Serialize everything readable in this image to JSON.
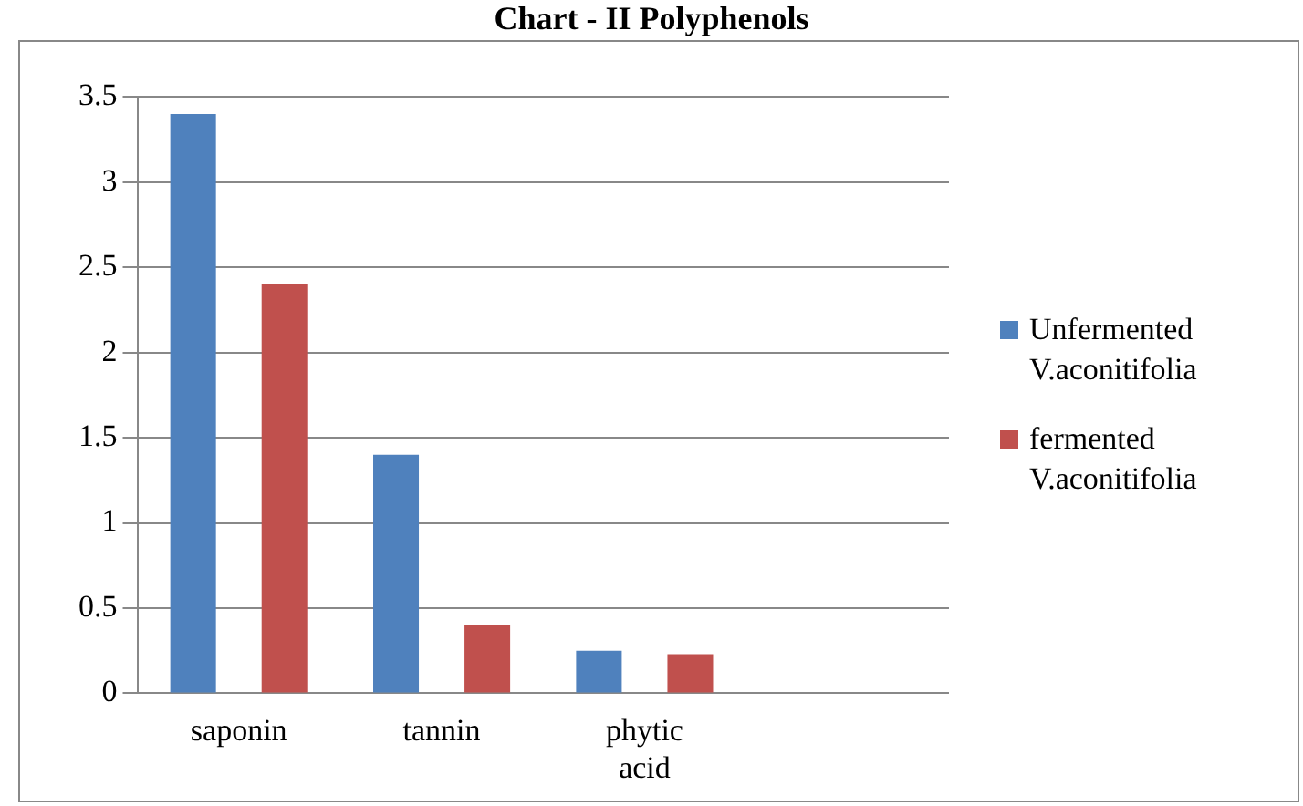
{
  "chart_data": {
    "type": "bar",
    "title": "Chart - II Polyphenols",
    "categories": [
      "saponin",
      "tannin",
      "phytic acid",
      null
    ],
    "series": [
      {
        "name": "Unfermented V.aconitifolia",
        "color": "#4f81bd",
        "values": [
          3.4,
          1.4,
          0.25,
          null
        ]
      },
      {
        "name": "fermented V.aconitifolia",
        "color": "#c0504d",
        "values": [
          2.4,
          0.4,
          0.23,
          null
        ]
      }
    ],
    "ylim": [
      0,
      3.5
    ],
    "yticks": [
      0,
      0.5,
      1,
      1.5,
      2,
      2.5,
      3,
      3.5
    ],
    "grid": "y",
    "legend": "right"
  }
}
